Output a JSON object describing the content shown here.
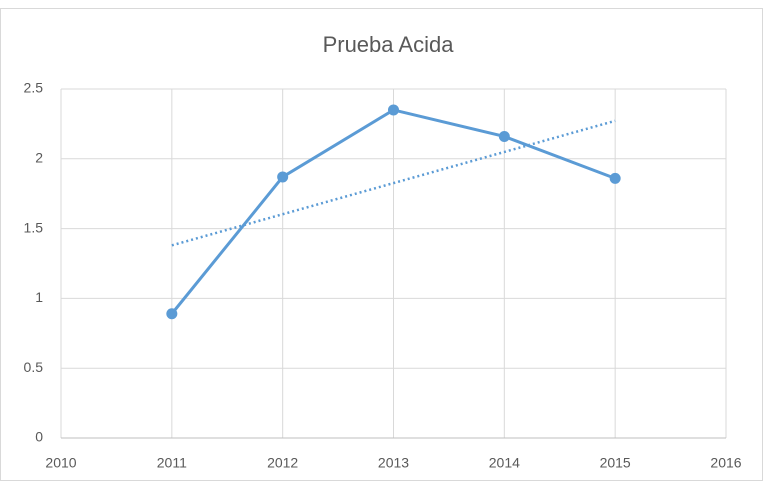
{
  "chart_data": {
    "type": "line",
    "title": "Prueba Acida",
    "x": [
      2011,
      2012,
      2013,
      2014,
      2015
    ],
    "values": [
      0.89,
      1.87,
      2.35,
      2.16,
      1.86
    ],
    "color": "#5b9bd5",
    "markers": true,
    "trendline": "linear",
    "xlim": [
      2010,
      2016
    ],
    "xticks": [
      2010,
      2011,
      2012,
      2013,
      2014,
      2015,
      2016
    ],
    "ylim": [
      0,
      2.5
    ],
    "yticks": [
      0,
      0.5,
      1,
      1.5,
      2,
      2.5
    ],
    "grid": true
  }
}
